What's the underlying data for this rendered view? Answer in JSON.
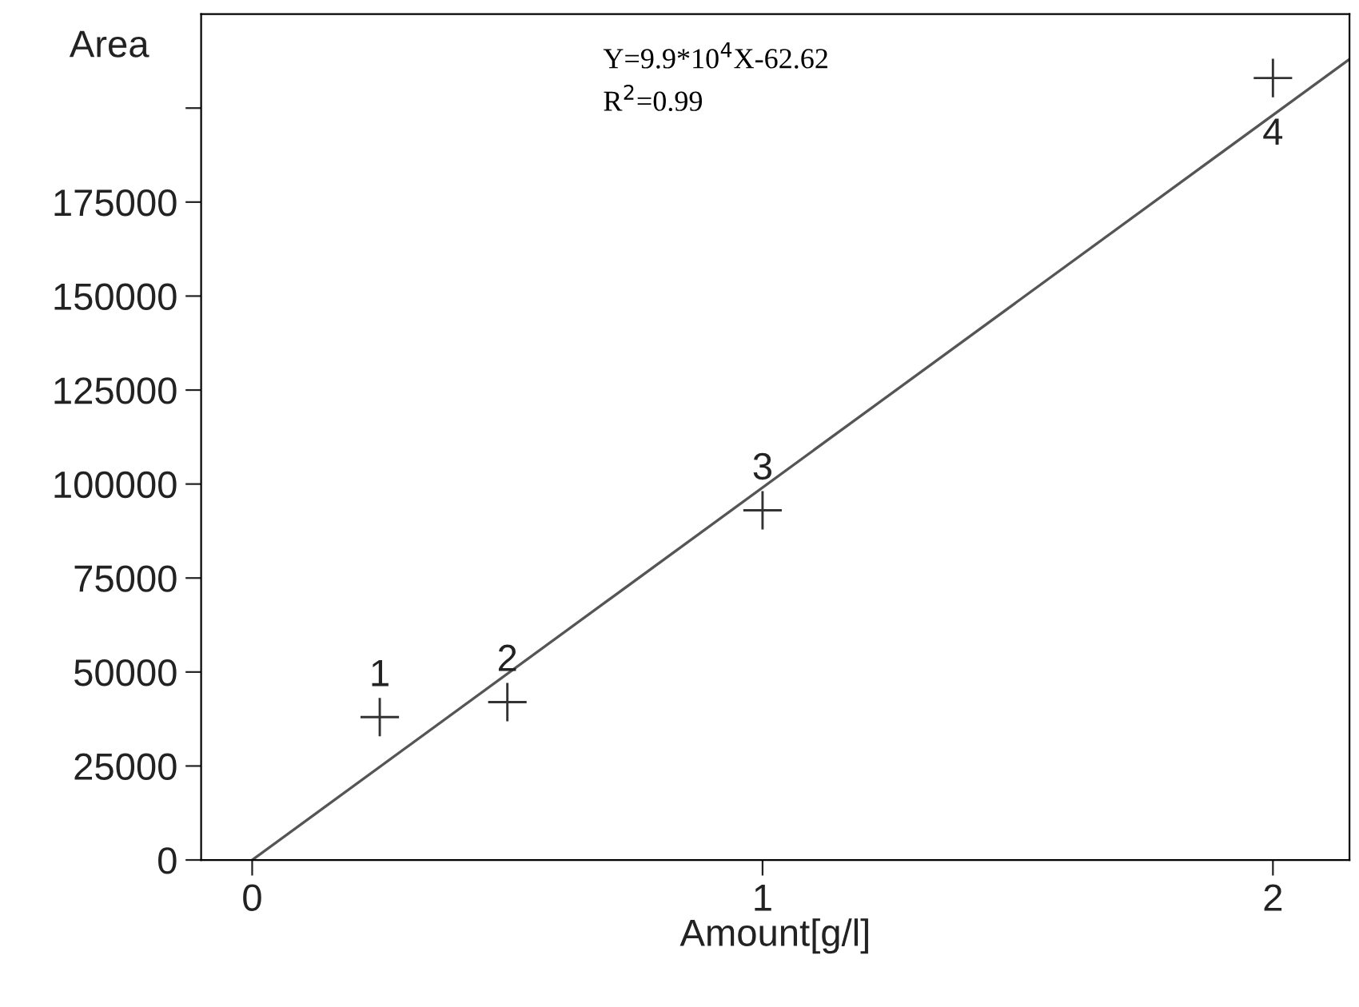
{
  "chart_data": {
    "type": "scatter",
    "xlabel": "Amount[g/l]",
    "ylabel": "Area",
    "series": [
      {
        "color": "#333333",
        "x": [
          0.25,
          0.5,
          1,
          2
        ],
        "values": [
          38000,
          42000,
          93000,
          208000
        ],
        "marker": "cross"
      },
      {
        "type": "line",
        "color": "#555555",
        "x": [
          0,
          2.15
        ],
        "values": [
          0,
          213000
        ],
        "marker": "none"
      }
    ],
    "xlim": [
      -0.1,
      2.15
    ],
    "ylim": [
      0,
      225000
    ],
    "xticks": [
      0,
      1,
      2
    ],
    "yticks": [
      0,
      25000,
      50000,
      75000,
      100000,
      125000,
      150000,
      175000,
      {
        "value": 200000,
        "label": null
      }
    ],
    "annotations": [
      {
        "text": "1",
        "x": 0.25,
        "y": 38000
      },
      {
        "text": "2",
        "x": 0.5,
        "y": 42000
      },
      {
        "text": "3",
        "x": 1,
        "y": 93000
      },
      {
        "text": "4",
        "x": 2,
        "y": 208000
      },
      "Y=9.9*10$^{4}$X-62.62",
      "R$^{2}$=0.99"
    ],
    "grid": false,
    "legend": false
  }
}
